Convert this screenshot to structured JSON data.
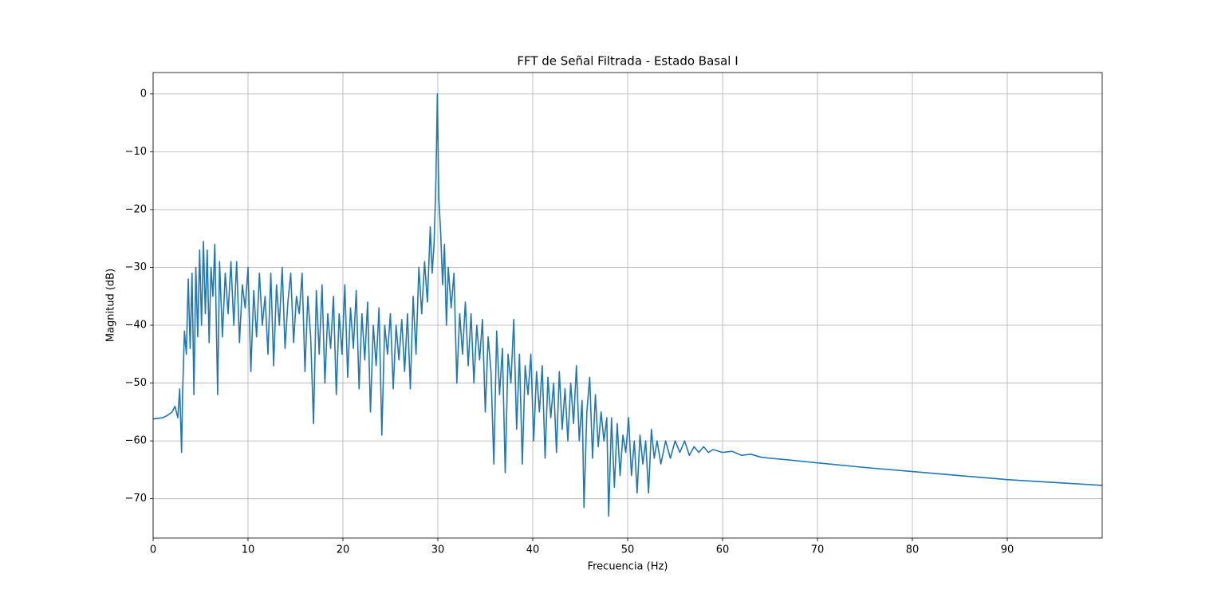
{
  "chart_data": {
    "type": "line",
    "title": "FFT de Señal Filtrada - Estado Basal I",
    "x_label": "Frecuencia (Hz)",
    "y_label": "Magnitud (dB)",
    "xlim": [
      0,
      100
    ],
    "ylim": [
      -76.8,
      3.7
    ],
    "xticks": [
      0,
      10,
      20,
      30,
      40,
      50,
      60,
      70,
      80,
      90
    ],
    "yticks": [
      {
        "value": -70,
        "label": "−70"
      },
      {
        "value": -60,
        "label": "−60"
      },
      {
        "value": -50,
        "label": "−50"
      },
      {
        "value": -40,
        "label": "−40"
      },
      {
        "value": -30,
        "label": "−30"
      },
      {
        "value": -20,
        "label": "−20"
      },
      {
        "value": -10,
        "label": "−10"
      },
      0
    ],
    "grid": true,
    "series": [
      {
        "color": "#1f77b4",
        "x": [
          0,
          1,
          1.5,
          2,
          2.3,
          2.6,
          2.8,
          3,
          3.1,
          3.3,
          3.5,
          3.7,
          3.9,
          4.1,
          4.3,
          4.5,
          4.7,
          4.9,
          5.1,
          5.3,
          5.5,
          5.7,
          5.9,
          6.1,
          6.3,
          6.5,
          6.8,
          7,
          7.3,
          7.6,
          7.9,
          8.2,
          8.5,
          8.8,
          9.1,
          9.4,
          9.7,
          10,
          10.3,
          10.6,
          10.9,
          11.2,
          11.5,
          11.8,
          12.1,
          12.4,
          12.7,
          13,
          13.3,
          13.6,
          13.9,
          14.2,
          14.5,
          14.8,
          15.1,
          15.4,
          15.7,
          16,
          16.3,
          16.6,
          16.9,
          17.2,
          17.5,
          17.8,
          18.1,
          18.4,
          18.7,
          19,
          19.3,
          19.6,
          19.9,
          20.2,
          20.5,
          20.8,
          21.1,
          21.4,
          21.7,
          22,
          22.3,
          22.6,
          22.9,
          23.2,
          23.5,
          23.8,
          24.1,
          24.4,
          24.7,
          25,
          25.3,
          25.6,
          25.9,
          26.2,
          26.5,
          26.8,
          27.1,
          27.4,
          27.7,
          28,
          28.3,
          28.6,
          28.9,
          29.2,
          29.4,
          29.6,
          29.8,
          29.95,
          30.1,
          30.3,
          30.5,
          30.7,
          30.9,
          31.1,
          31.4,
          31.7,
          32,
          32.3,
          32.6,
          32.9,
          33.2,
          33.5,
          33.8,
          34.1,
          34.4,
          34.7,
          35,
          35.3,
          35.6,
          35.9,
          36.2,
          36.5,
          36.8,
          37.1,
          37.4,
          37.7,
          38,
          38.3,
          38.6,
          38.9,
          39.2,
          39.5,
          39.8,
          40.1,
          40.4,
          40.7,
          41,
          41.3,
          41.6,
          41.9,
          42.2,
          42.5,
          42.8,
          43.1,
          43.4,
          43.7,
          44,
          44.3,
          44.6,
          44.9,
          45.2,
          45.4,
          45.7,
          46,
          46.3,
          46.6,
          46.9,
          47.2,
          47.5,
          47.8,
          48,
          48.3,
          48.6,
          48.9,
          49.2,
          49.5,
          49.8,
          50.1,
          50.4,
          50.7,
          51,
          51.3,
          51.6,
          51.9,
          52.2,
          52.5,
          52.8,
          53.1,
          53.5,
          54,
          54.5,
          55,
          55.5,
          56,
          56.5,
          57,
          57.5,
          58,
          58.5,
          59,
          60,
          61,
          62,
          63,
          64,
          65,
          67,
          70,
          75,
          80,
          85,
          90,
          95,
          100
        ],
        "values": [
          -56.2,
          -56,
          -55.6,
          -55,
          -54,
          -56,
          -51,
          -62,
          -52,
          -41,
          -45,
          -32,
          -44,
          -31,
          -52,
          -30,
          -42,
          -27,
          -40,
          -25.5,
          -38,
          -27,
          -43,
          -30,
          -35,
          -26,
          -52,
          -29,
          -42,
          -31,
          -38,
          -29,
          -40,
          -29,
          -43,
          -33,
          -37,
          -30,
          -48,
          -34,
          -42,
          -31,
          -40,
          -35,
          -45,
          -31,
          -47,
          -33,
          -40,
          -30,
          -44,
          -36,
          -31,
          -43,
          -35,
          -38,
          -31,
          -48,
          -35,
          -42,
          -57,
          -34,
          -45,
          -33,
          -50,
          -38,
          -44,
          -35,
          -52,
          -38,
          -45,
          -33,
          -49,
          -37,
          -44,
          -34,
          -51,
          -38,
          -46,
          -36,
          -55,
          -40,
          -47,
          -37,
          -59,
          -40,
          -45,
          -38,
          -51,
          -40,
          -46,
          -39,
          -48,
          -38,
          -51,
          -35,
          -45,
          -30,
          -38,
          -29,
          -36,
          -23,
          -31,
          -26,
          -15,
          0,
          -18,
          -24,
          -33,
          -26,
          -40,
          -30,
          -37,
          -31,
          -50,
          -38,
          -45,
          -36,
          -47,
          -38,
          -50,
          -40,
          -46,
          -39,
          -55,
          -42,
          -48,
          -64,
          -41,
          -52,
          -44,
          -65.5,
          -45,
          -50,
          -39,
          -58,
          -45,
          -64,
          -47,
          -52,
          -45,
          -60,
          -48,
          -55,
          -47,
          -63,
          -49,
          -56,
          -50,
          -62,
          -48,
          -58,
          -51,
          -60,
          -50,
          -57,
          -47,
          -60,
          -53,
          -71.5,
          -55,
          -49,
          -63,
          -52,
          -61,
          -55,
          -60,
          -56,
          -73,
          -56,
          -68,
          -57,
          -66,
          -59,
          -62,
          -56,
          -66,
          -60,
          -69,
          -59,
          -64,
          -60,
          -69,
          -58,
          -63,
          -60,
          -64,
          -60,
          -63,
          -60,
          -62,
          -60,
          -62.5,
          -61,
          -62,
          -61,
          -62,
          -61.5,
          -62,
          -61.8,
          -62.5,
          -62.3,
          -62.8,
          -63,
          -63.3,
          -63.8,
          -64.6,
          -65.3,
          -66,
          -66.7,
          -67.2,
          -67.7
        ]
      }
    ]
  }
}
